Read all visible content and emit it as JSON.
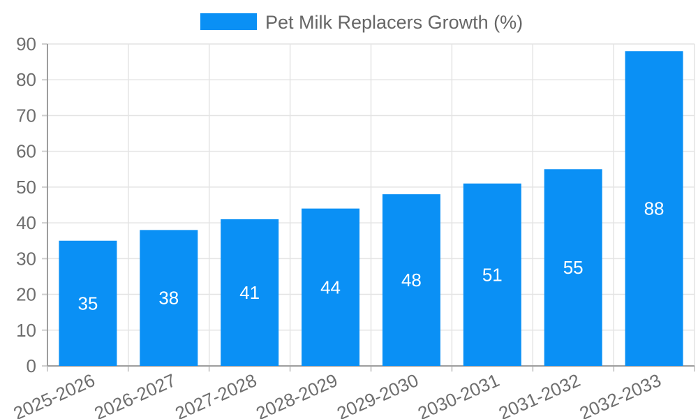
{
  "chart_data": {
    "type": "bar",
    "title": "Pet Milk Replacers Growth (%)",
    "series_name": "Pet Milk Replacers Growth (%)",
    "categories": [
      "2025-2026",
      "2026-2027",
      "2027-2028",
      "2028-2029",
      "2029-2030",
      "2030-2031",
      "2031-2032",
      "2032-2033"
    ],
    "values": [
      35,
      38,
      41,
      44,
      48,
      51,
      55,
      88
    ],
    "value_labels": [
      "35",
      "38",
      "41",
      "44",
      "48",
      "51",
      "55",
      "88"
    ],
    "xlabel": "",
    "ylabel": "",
    "ylim": [
      0,
      90
    ],
    "ytick_step": 10,
    "yticks": [
      "0",
      "10",
      "20",
      "30",
      "40",
      "50",
      "60",
      "70",
      "80",
      "90"
    ],
    "grid": "both",
    "legend_position": "top-center",
    "colors": {
      "bar": "#0A90F5",
      "value_label": "#ffffff",
      "axis_label": "#6e6e6e",
      "legend_text": "#666666",
      "grid_line": "#e4e4e4",
      "axis_line": "#9e9e9e",
      "tick_mark": "#cfcfcf",
      "background": "#ffffff"
    }
  }
}
